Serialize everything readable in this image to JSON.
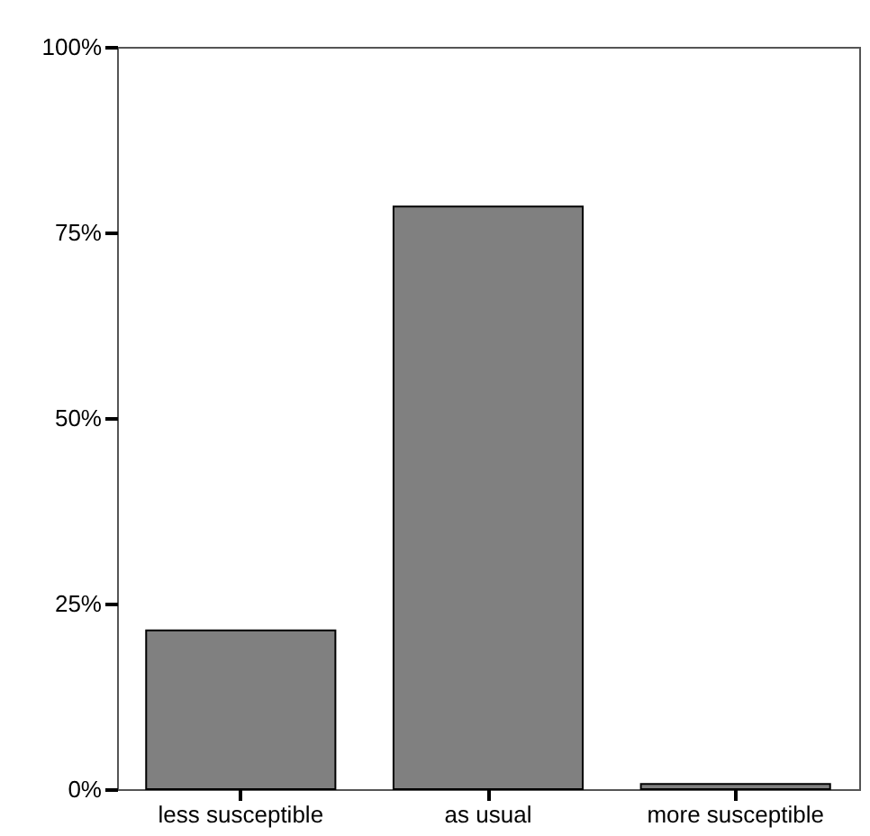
{
  "chart_data": {
    "type": "bar",
    "categories": [
      "less susceptible",
      "as usual",
      "more susceptible"
    ],
    "values": [
      21.4,
      78.5,
      0.7
    ],
    "color": "#808080",
    "ylim": [
      0,
      100
    ],
    "yticks": [
      {
        "value": 0,
        "label": "0%"
      },
      {
        "value": 25,
        "label": "25%"
      },
      {
        "value": 50,
        "label": "50%"
      },
      {
        "value": 75,
        "label": "75%"
      },
      {
        "value": 100,
        "label": "100%"
      }
    ],
    "grid": false
  }
}
